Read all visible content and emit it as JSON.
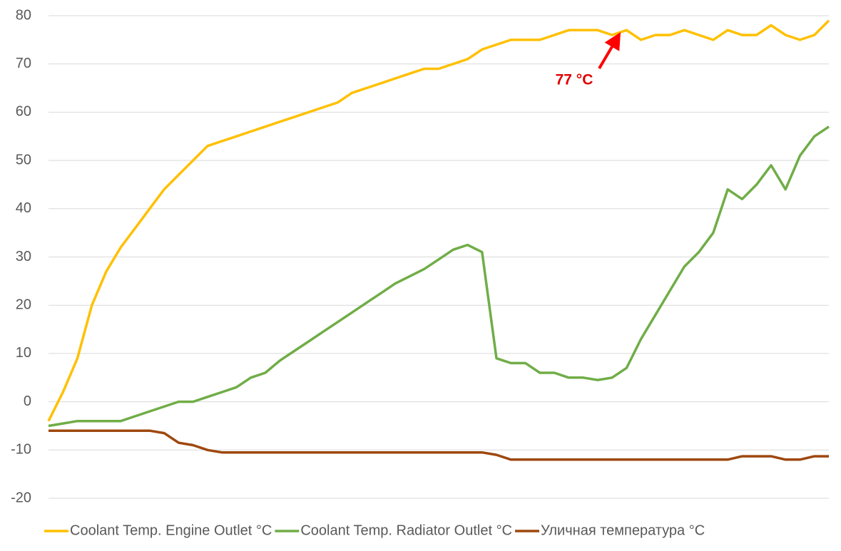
{
  "chart_data": {
    "type": "line",
    "categories": [
      null,
      null,
      null,
      null,
      null,
      null,
      null,
      null,
      null,
      null,
      null,
      null,
      null,
      null,
      null,
      null,
      null,
      null,
      null,
      null,
      null,
      null,
      null,
      null,
      null,
      null,
      null,
      null,
      null,
      null,
      null,
      null,
      null,
      null,
      null,
      null,
      null,
      null,
      null,
      null,
      null,
      null,
      null,
      null,
      null,
      null,
      null,
      null,
      null,
      null,
      null,
      null,
      null,
      null,
      null
    ],
    "series": [
      {
        "name": "Coolant Temp. Engine Outlet °C",
        "color": "#ffc000",
        "values": [
          -4,
          2,
          9,
          20,
          27,
          32,
          36,
          40,
          44,
          47,
          50,
          53,
          54,
          55,
          56,
          57,
          58,
          59,
          60,
          61,
          62,
          64,
          65,
          66,
          67,
          68,
          69,
          69,
          70,
          71,
          73,
          74,
          75,
          75,
          75,
          76,
          77,
          77,
          77,
          76,
          77,
          75,
          76,
          76,
          77,
          76,
          75,
          77,
          76,
          76,
          78,
          76,
          75,
          76,
          79
        ]
      },
      {
        "name": "Coolant Temp. Radiator Outlet °C",
        "color": "#70ad47",
        "values": [
          -5,
          -4.5,
          -4,
          -4,
          -4,
          -4,
          -3,
          -2,
          -1,
          0,
          0,
          1,
          2,
          3,
          5,
          6,
          8.5,
          10.5,
          12.5,
          14.5,
          16.5,
          18.5,
          20.5,
          22.5,
          24.5,
          26,
          27.5,
          29.5,
          31.5,
          32.5,
          31,
          9,
          8,
          8,
          6,
          6,
          5,
          5,
          4.5,
          5,
          7,
          13,
          18,
          23,
          28,
          31,
          35,
          44,
          42,
          45,
          49,
          44,
          51,
          55,
          57
        ]
      },
      {
        "name": "Уличная температура °C",
        "color": "#9e480e",
        "values": [
          -6,
          -6,
          -6,
          -6,
          -6,
          -6,
          -6,
          -6,
          -6.5,
          -8.5,
          -9,
          -10,
          -10.5,
          -10.5,
          -10.5,
          -10.5,
          -10.5,
          -10.5,
          -10.5,
          -10.5,
          -10.5,
          -10.5,
          -10.5,
          -10.5,
          -10.5,
          -10.5,
          -10.5,
          -10.5,
          -10.5,
          -10.5,
          -10.5,
          -11,
          -12,
          -12,
          -12,
          -12,
          -12,
          -12,
          -12,
          -12,
          -12,
          -12,
          -12,
          -12,
          -12,
          -12,
          -12,
          -12,
          -11.3,
          -11.3,
          -11.3,
          -12,
          -12,
          -11.3,
          -11.3
        ]
      }
    ],
    "ylim": [
      -20,
      80
    ],
    "yticks": [
      -20,
      -10,
      0,
      10,
      20,
      30,
      40,
      50,
      60,
      70,
      80
    ],
    "grid": true,
    "legend": "bottom",
    "annotations": [
      "77  °C"
    ]
  }
}
